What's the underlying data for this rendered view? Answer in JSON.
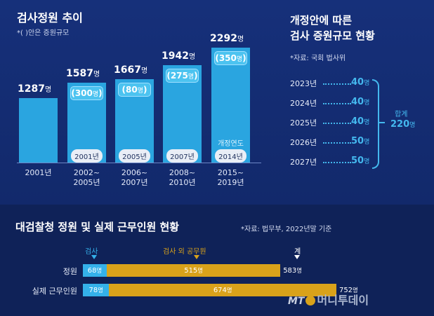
{
  "left_title": "검사정원 추이",
  "left_subtitle": "*( )안은 증원규모",
  "unit": "명",
  "right_title_1": "개정안에 따른",
  "right_title_2": "검사 증원규모 현황",
  "right_source": "*자료: 국회 법사위",
  "bottom_title": "대검찰청 정원 및 실제 근무인원 현황",
  "bottom_source": "*자료: 법무부, 2022년말 기준",
  "logo_text": "머니투데이",
  "logo_mt": "MT",
  "colors": {
    "bg": "#0d1f4a",
    "bar": "#2aa5e0",
    "prosecutor": "#34b1ea",
    "other": "#d9a21a"
  },
  "chart_data": [
    {
      "type": "bar",
      "categories": [
        "2001년",
        "2002~\n2005년",
        "2006~\n2007년",
        "2008~\n2010년",
        "2015~\n2019년"
      ],
      "values": [
        1287,
        1587,
        1667,
        1942,
        2292
      ],
      "value_labels": [
        "1287",
        "1587",
        "1667",
        "1942",
        "2292"
      ],
      "increase_labels": [
        null,
        "300",
        "80",
        "275",
        "350"
      ],
      "year_tags": [
        null,
        "2001년",
        "2005년",
        "2007년",
        "2014년"
      ],
      "note_label": "개정연도",
      "ylim": [
        0,
        2400
      ]
    },
    {
      "type": "table",
      "years": [
        "2023년",
        "2024년",
        "2025년",
        "2026년",
        "2027년"
      ],
      "values": [
        40,
        40,
        40,
        50,
        50
      ],
      "total_label": "합계",
      "total_value": 220
    },
    {
      "type": "bar",
      "orientation": "horizontal",
      "stacked": true,
      "categories": [
        "정원",
        "실제 근무인원"
      ],
      "series": [
        {
          "name": "검사",
          "values": [
            68,
            78
          ]
        },
        {
          "name": "검사 외 공무원",
          "values": [
            515,
            674
          ]
        }
      ],
      "totals": [
        583,
        752
      ],
      "total_header": "계"
    }
  ]
}
